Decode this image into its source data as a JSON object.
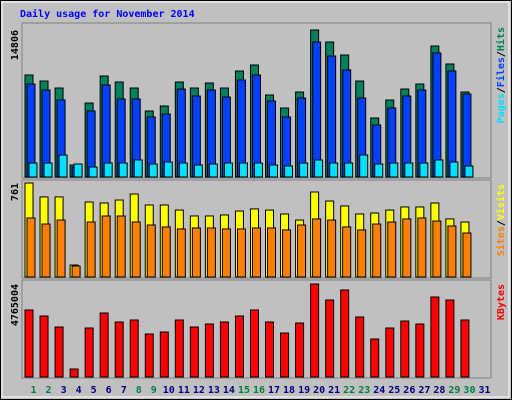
{
  "chart_data": [
    {
      "type": "bar",
      "title": "Daily usage for November 2014",
      "legend_separator": "/",
      "ylim": [
        0,
        14806
      ],
      "yticks": [
        14806
      ],
      "series": [
        {
          "name": "Hits",
          "color": "#00805c",
          "values": [
            10273,
            9669,
            8964,
            1209,
            7453,
            10173,
            9568,
            8964,
            6648,
            7151,
            9568,
            8964,
            9468,
            8964,
            10676,
            11281,
            8259,
            6950,
            8561,
            14806,
            13597,
            12288,
            9669,
            5942,
            7755,
            8863,
            9367,
            13194,
            11381,
            8561,
            null
          ]
        },
        {
          "name": "Files",
          "color": "#0040ff",
          "values": [
            9367,
            8763,
            7755,
            1007,
            6648,
            9266,
            7856,
            7856,
            6043,
            6345,
            8863,
            8158,
            8763,
            8058,
            9770,
            10273,
            7655,
            6043,
            7957,
            13597,
            12187,
            10777,
            7957,
            5237,
            6950,
            8158,
            8763,
            12489,
            10676,
            8360,
            null
          ]
        },
        {
          "name": "Pages",
          "color": "#00e0ff",
          "values": [
            1410,
            1410,
            2216,
            1309,
            1007,
            1410,
            1410,
            1712,
            1309,
            1511,
            1410,
            1209,
            1309,
            1410,
            1410,
            1410,
            1209,
            1108,
            1410,
            1712,
            1410,
            1410,
            2216,
            1309,
            1410,
            1410,
            1410,
            1712,
            1511,
            1108,
            null
          ]
        }
      ]
    },
    {
      "type": "bar",
      "legend_separator": "/",
      "ylim": [
        0,
        761
      ],
      "yticks": [
        761
      ],
      "series": [
        {
          "name": "Visits",
          "color": "#ffff00",
          "values": [
            761,
            648,
            648,
            97,
            607,
            599,
            623,
            672,
            583,
            583,
            542,
            494,
            494,
            502,
            534,
            551,
            542,
            510,
            461,
            688,
            615,
            575,
            510,
            518,
            542,
            567,
            567,
            599,
            470,
            445,
            null
          ]
        },
        {
          "name": "Sites",
          "color": "#ff8000",
          "values": [
            478,
            429,
            461,
            89,
            445,
            494,
            494,
            445,
            421,
            405,
            389,
            397,
            397,
            389,
            389,
            397,
            397,
            381,
            421,
            470,
            461,
            405,
            381,
            429,
            445,
            470,
            478,
            453,
            413,
            356,
            null
          ]
        }
      ]
    },
    {
      "type": "bar",
      "ylim": [
        0,
        4765004
      ],
      "yticks": [
        4765004
      ],
      "categories": [
        1,
        2,
        3,
        4,
        5,
        6,
        7,
        8,
        9,
        10,
        11,
        12,
        13,
        14,
        15,
        16,
        17,
        18,
        19,
        20,
        21,
        22,
        23,
        24,
        25,
        26,
        27,
        28,
        29,
        30,
        31
      ],
      "weekend_days": [
        1,
        2,
        8,
        9,
        15,
        16,
        22,
        23,
        29,
        30
      ],
      "weekend_color": "#008040",
      "weekday_color": "#000080",
      "series": [
        {
          "name": "KBytes",
          "color": "#ff0000",
          "values": [
            3432879,
            3125457,
            2561850,
            409896,
            2510613,
            3279168,
            2818035,
            2920509,
            2203191,
            2305665,
            2920509,
            2561850,
            2715561,
            2818035,
            3125457,
            3432879,
            2818035,
            2254428,
            2766798,
            4765004,
            3945249,
            4457619,
            3074220,
            1947006,
            2510613,
            2869272,
            2715561,
            4098960,
            3945249,
            2920509,
            null
          ]
        }
      ]
    }
  ]
}
